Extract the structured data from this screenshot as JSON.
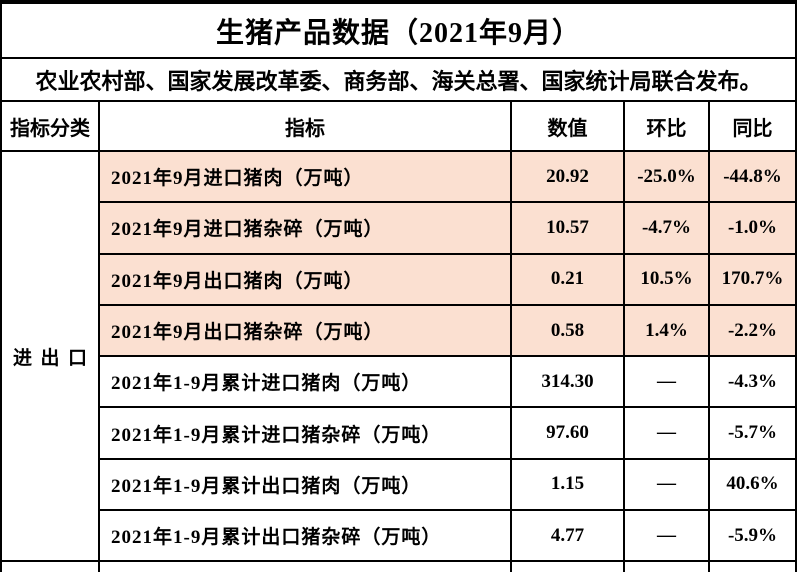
{
  "title": "生猪产品数据（2021年9月）",
  "subtitle": "农业农村部、国家发展改革委、商务部、海关总署、国家统计局联合发布。",
  "columns": {
    "category": "指标分类",
    "indicator": "指标",
    "value": "数值",
    "mom": "环比",
    "yoy": "同比"
  },
  "category_group": "进出口",
  "rows": [
    {
      "indicator": "2021年9月进口猪肉（万吨）",
      "value": "20.92",
      "mom": "-25.0%",
      "yoy": "-44.8%"
    },
    {
      "indicator": "2021年9月进口猪杂碎（万吨）",
      "value": "10.57",
      "mom": "-4.7%",
      "yoy": "-1.0%"
    },
    {
      "indicator": "2021年9月出口猪肉（万吨）",
      "value": "0.21",
      "mom": "10.5%",
      "yoy": "170.7%"
    },
    {
      "indicator": "2021年9月出口猪杂碎（万吨）",
      "value": "0.58",
      "mom": "1.4%",
      "yoy": "-2.2%"
    },
    {
      "indicator": "2021年1-9月累计进口猪肉（万吨）",
      "value": "314.30",
      "mom": "—",
      "yoy": "-4.3%"
    },
    {
      "indicator": "2021年1-9月累计进口猪杂碎（万吨）",
      "value": "97.60",
      "mom": "—",
      "yoy": "-5.7%"
    },
    {
      "indicator": "2021年1-9月累计出口猪肉（万吨）",
      "value": "1.15",
      "mom": "—",
      "yoy": "40.6%"
    },
    {
      "indicator": "2021年1-9月累计出口猪杂碎（万吨）",
      "value": "4.77",
      "mom": "—",
      "yoy": "-5.9%"
    }
  ],
  "colors": {
    "highlight_bg": "#fbe0d1",
    "border": "#000000",
    "text": "#000000",
    "background": "#ffffff"
  }
}
